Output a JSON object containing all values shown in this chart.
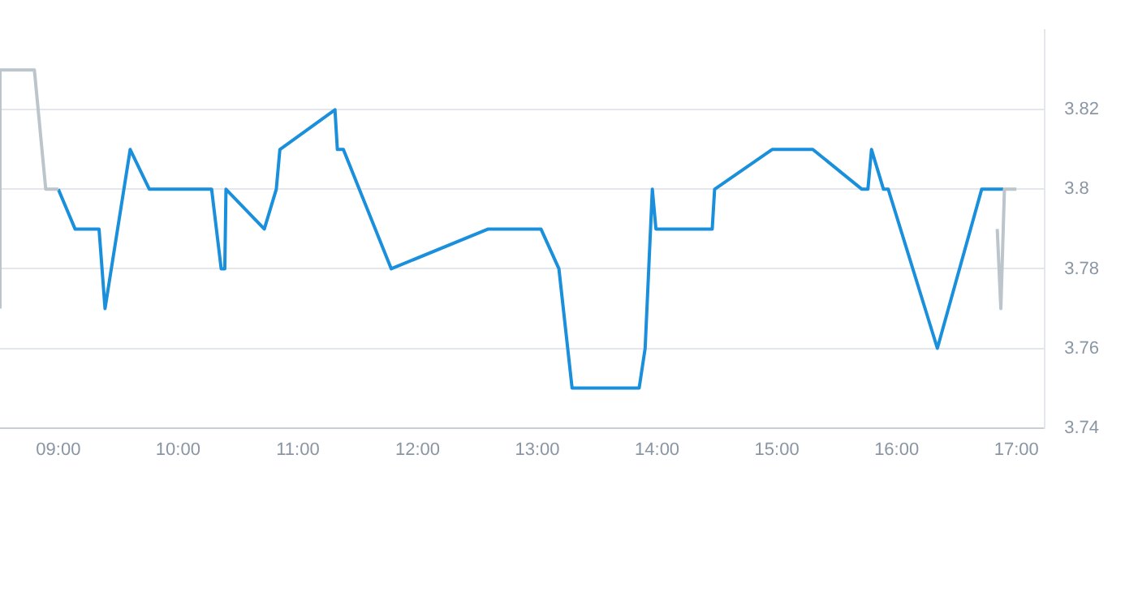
{
  "chart_data": {
    "type": "line",
    "marker": "none",
    "grid": "y",
    "legend": false,
    "xlim": [
      8.513,
      17.237
    ],
    "ylim": [
      3.74,
      3.84
    ],
    "xticks": [
      {
        "value": 9,
        "label": "09:00"
      },
      {
        "value": 10,
        "label": "10:00"
      },
      {
        "value": 11,
        "label": "11:00"
      },
      {
        "value": 12,
        "label": "12:00"
      },
      {
        "value": 13,
        "label": "13:00"
      },
      {
        "value": 14,
        "label": "14:00"
      },
      {
        "value": 15,
        "label": "15:00"
      },
      {
        "value": 16,
        "label": "16:00"
      },
      {
        "value": 17,
        "label": "17:00"
      }
    ],
    "yticks": [
      3.74,
      3.76,
      3.78,
      3.8,
      3.82
    ],
    "series": [
      {
        "color": "#bcc5cc",
        "x": [
          8.513,
          8.513,
          8.8,
          8.895,
          9.0,
          12.0,
          16.84,
          16.87,
          16.9,
          17.0
        ],
        "values": [
          3.77,
          3.83,
          3.83,
          3.8,
          3.8,
          null,
          3.79,
          3.77,
          3.8,
          3.8
        ]
      },
      {
        "color": "#1a8fdb",
        "x": [
          9.0,
          9.14,
          9.34,
          9.39,
          9.6,
          9.76,
          10.28,
          10.36,
          10.39,
          10.4,
          10.72,
          10.82,
          10.85,
          11.31,
          11.33,
          11.38,
          11.78,
          12.59,
          13.03,
          13.18,
          13.29,
          13.85,
          13.9,
          13.96,
          13.99,
          14.46,
          14.48,
          14.96,
          15.3,
          15.71,
          15.76,
          15.79,
          15.89,
          15.93,
          16.34,
          16.71,
          16.89
        ],
        "values": [
          3.8,
          3.79,
          3.79,
          3.77,
          3.81,
          3.8,
          3.8,
          3.78,
          3.78,
          3.8,
          3.79,
          3.8,
          3.81,
          3.82,
          3.81,
          3.81,
          3.78,
          3.79,
          3.79,
          3.78,
          3.75,
          3.75,
          3.76,
          3.8,
          3.79,
          3.79,
          3.8,
          3.81,
          3.81,
          3.8,
          3.8,
          3.81,
          3.8,
          3.8,
          3.76,
          3.8,
          3.8
        ]
      }
    ]
  }
}
